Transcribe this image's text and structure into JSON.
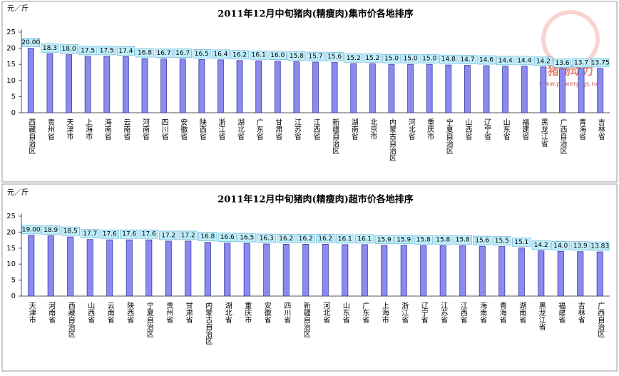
{
  "chart_data": [
    {
      "type": "bar",
      "title": "2011年12月中旬猪肉(精瘦肉)集市价各地排序",
      "y_label": "元／斤",
      "categories": [
        "西藏自治区",
        "贵州省",
        "天津市",
        "上海市",
        "海南省",
        "云南省",
        "河南省",
        "四川省",
        "安徽省",
        "陕西省",
        "浙江省",
        "湖北省",
        "广东省",
        "甘肃省",
        "江苏省",
        "江西省",
        "新疆自治区",
        "湖南省",
        "北京市",
        "内蒙古自治区",
        "河北省",
        "重庆市",
        "宁夏自治区",
        "山西省",
        "辽宁省",
        "山东省",
        "福建省",
        "黑龙江省",
        "广西自治区",
        "青海省",
        "吉林省"
      ],
      "values": [
        20.0,
        18.3,
        18.0,
        17.5,
        17.5,
        17.4,
        16.8,
        16.7,
        16.7,
        16.5,
        16.4,
        16.2,
        16.1,
        16.0,
        15.8,
        15.7,
        15.6,
        15.2,
        15.2,
        15.0,
        15.0,
        15.0,
        14.8,
        14.7,
        14.6,
        14.4,
        14.4,
        14.2,
        13.6,
        13.7,
        13.75
      ],
      "value_labels": [
        "20.00",
        "18.3",
        "18.0",
        "17.5",
        "17.5",
        "17.4",
        "16.8",
        "16.7",
        "16.7",
        "16.5",
        "16.4",
        "16.2",
        "16.1",
        "16.0",
        "15.8",
        "15.7",
        "15.6",
        "15.2",
        "15.2",
        "15.0",
        "15.0",
        "15.0",
        "14.8",
        "14.7",
        "14.6",
        "14.4",
        "14.4",
        "14.2",
        "13.6",
        "13.7",
        "13.75"
      ],
      "color": "#8a8af0",
      "ylim": [
        0,
        25
      ],
      "yticks": [
        0,
        5,
        10,
        15,
        20,
        25
      ],
      "grid": false
    },
    {
      "type": "bar",
      "title": "2011年12月中旬猪肉(精瘦肉)超市价各地排序",
      "y_label": "元／斤",
      "categories": [
        "天津市",
        "河南省",
        "西藏自治区",
        "山西省",
        "云南省",
        "陕西省",
        "宁夏自治区",
        "贵州省",
        "甘肃省",
        "内蒙古自治区",
        "湖北省",
        "重庆市",
        "安徽省",
        "四川省",
        "新疆自治区",
        "河北省",
        "山东省",
        "广东省",
        "上海市",
        "浙江省",
        "辽宁省",
        "江苏省",
        "江西省",
        "海南省",
        "青海省",
        "湖南省",
        "黑龙江省",
        "福建省",
        "吉林省",
        "广西自治区"
      ],
      "values": [
        19.0,
        18.9,
        18.5,
        17.7,
        17.6,
        17.6,
        17.6,
        17.2,
        17.2,
        16.8,
        16.6,
        16.5,
        16.3,
        16.2,
        16.2,
        16.2,
        16.1,
        16.1,
        15.9,
        15.9,
        15.8,
        15.8,
        15.8,
        15.6,
        15.5,
        15.1,
        14.2,
        14.0,
        13.9,
        13.83
      ],
      "value_labels": [
        "19.00",
        "18.9",
        "18.5",
        "17.7",
        "17.6",
        "17.6",
        "17.6",
        "17.2",
        "17.2",
        "16.8",
        "16.6",
        "16.5",
        "16.3",
        "16.2",
        "16.2",
        "16.2",
        "16.1",
        "16.1",
        "15.9",
        "15.9",
        "15.8",
        "15.8",
        "15.8",
        "15.6",
        "15.5",
        "15.1",
        "14.2",
        "14.0",
        "13.9",
        "13.83"
      ],
      "color": "#8a8af0",
      "ylim": [
        0,
        25
      ],
      "yticks": [
        0,
        5,
        10,
        15,
        20,
        25
      ],
      "grid": false
    }
  ],
  "logo": {
    "name": "猪场动力",
    "url": "www.powerpigs.net"
  }
}
